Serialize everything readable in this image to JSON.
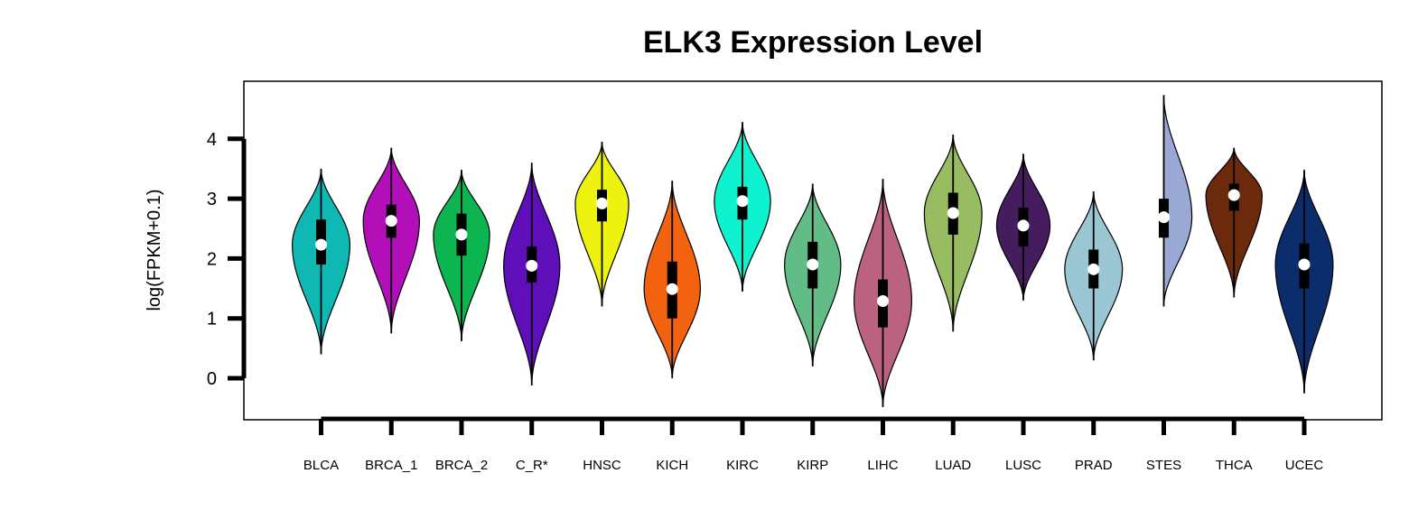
{
  "chart_data": {
    "type": "violin",
    "title": "ELK3 Expression Level",
    "ylabel": "log(FPKM+0.1)",
    "xlabel": "",
    "ylim": [
      -0.7,
      4.9
    ],
    "yticks": [
      0,
      1,
      2,
      3,
      4
    ],
    "ytick_labels": [
      "0",
      "1",
      "2",
      "3",
      "4"
    ],
    "grid": false,
    "legend": "none",
    "categories": [
      "BLCA",
      "BRCA_1",
      "BRCA_2",
      "C_R*",
      "HNSC",
      "KICH",
      "KIRC",
      "KIRP",
      "LIHC",
      "LUAD",
      "LUSC",
      "PRAD",
      "STES",
      "THCA",
      "UCEC"
    ],
    "series": [
      {
        "category": "BLCA",
        "color": "#0fb8b3",
        "median": 2.23,
        "q1": 1.9,
        "q3": 2.65,
        "min": 0.4,
        "max": 3.5,
        "width": 0.41
      },
      {
        "category": "BRCA_1",
        "color": "#b20fb8",
        "median": 2.63,
        "q1": 2.35,
        "q3": 2.9,
        "min": 0.75,
        "max": 3.85,
        "width": 0.4
      },
      {
        "category": "BRCA_2",
        "color": "#0cb550",
        "median": 2.4,
        "q1": 2.05,
        "q3": 2.75,
        "min": 0.62,
        "max": 3.48,
        "width": 0.4
      },
      {
        "category": "C_R*",
        "color": "#5e0fba",
        "median": 1.88,
        "q1": 1.6,
        "q3": 2.2,
        "min": -0.12,
        "max": 3.6,
        "width": 0.4
      },
      {
        "category": "HNSC",
        "color": "#eef20f",
        "median": 2.92,
        "q1": 2.62,
        "q3": 3.15,
        "min": 1.2,
        "max": 3.95,
        "width": 0.38
      },
      {
        "category": "KICH",
        "color": "#f2620f",
        "median": 1.49,
        "q1": 1.0,
        "q3": 1.95,
        "min": 0.0,
        "max": 3.3,
        "width": 0.4
      },
      {
        "category": "KIRC",
        "color": "#0ff2d0",
        "median": 2.96,
        "q1": 2.65,
        "q3": 3.2,
        "min": 1.45,
        "max": 4.28,
        "width": 0.4
      },
      {
        "category": "KIRP",
        "color": "#62bc85",
        "median": 1.9,
        "q1": 1.5,
        "q3": 2.28,
        "min": 0.2,
        "max": 3.25,
        "width": 0.4
      },
      {
        "category": "LIHC",
        "color": "#bc6281",
        "median": 1.29,
        "q1": 0.85,
        "q3": 1.65,
        "min": -0.48,
        "max": 3.33,
        "width": 0.41
      },
      {
        "category": "LUAD",
        "color": "#98bc62",
        "median": 2.76,
        "q1": 2.4,
        "q3": 3.1,
        "min": 0.78,
        "max": 4.07,
        "width": 0.41
      },
      {
        "category": "LUSC",
        "color": "#451c5e",
        "median": 2.55,
        "q1": 2.2,
        "q3": 2.85,
        "min": 1.3,
        "max": 3.75,
        "width": 0.38
      },
      {
        "category": "PRAD",
        "color": "#9bc6d4",
        "median": 1.82,
        "q1": 1.5,
        "q3": 2.15,
        "min": 0.3,
        "max": 3.12,
        "width": 0.41
      },
      {
        "category": "STES",
        "color": "#9aa9d4",
        "median": 2.69,
        "q1": 2.35,
        "q3": 3.0,
        "min": 1.2,
        "max": 4.73,
        "width": 0.4
      },
      {
        "category": "THCA",
        "color": "#6b2a0c",
        "median": 3.06,
        "q1": 2.8,
        "q3": 3.25,
        "min": 1.35,
        "max": 3.85,
        "width": 0.4
      },
      {
        "category": "UCEC",
        "color": "#0c2d6b",
        "median": 1.9,
        "q1": 1.5,
        "q3": 2.25,
        "min": -0.25,
        "max": 3.48,
        "width": 0.41
      }
    ]
  }
}
